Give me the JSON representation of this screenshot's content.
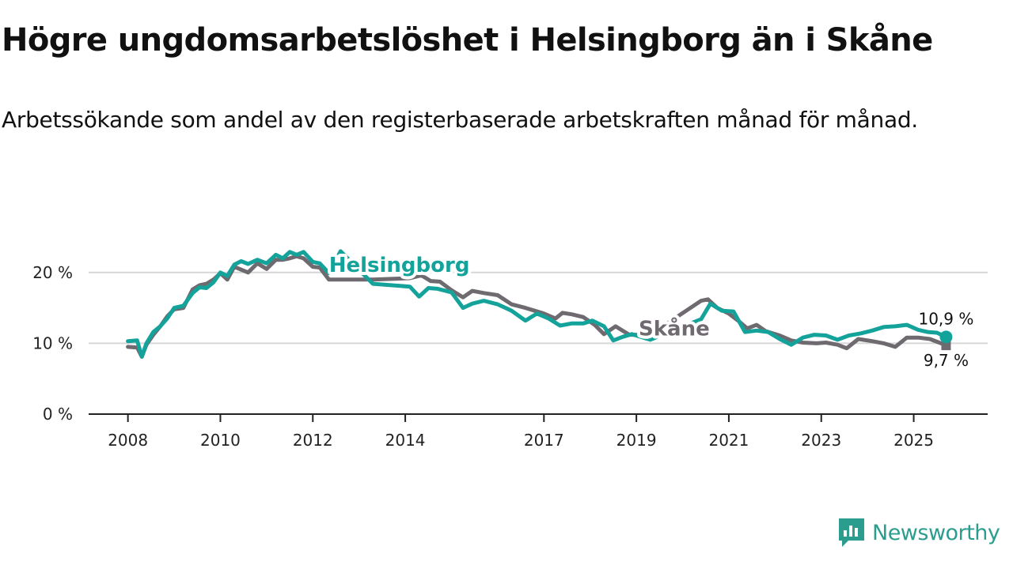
{
  "header": {
    "title": "Högre ungdomsarbetslöshet i Helsingborg än i Skåne",
    "subtitle": "Arbetssökande som andel av den registerbaserade arbetskraften månad för månad."
  },
  "brand": {
    "name": "Newsworthy",
    "icon": "newsworthy-logo-icon",
    "color": "#2a9d8f"
  },
  "chart_data": {
    "type": "line",
    "title": "Högre ungdomsarbetslöshet i Helsingborg än i Skåne",
    "subtitle": "Arbetssökande som andel av den registerbaserade arbetskraften månad för månad.",
    "xlabel": "",
    "ylabel": "",
    "x_ticks": [
      "2008",
      "2010",
      "2012",
      "2014",
      "2017",
      "2019",
      "2021",
      "2023",
      "2025"
    ],
    "x_tick_values": [
      2008.0,
      2010.0,
      2012.0,
      2014.0,
      2017.0,
      2019.0,
      2021.0,
      2023.0,
      2025.0
    ],
    "xlim": [
      2007.15,
      2026.6
    ],
    "y_ticks": [
      "0 %",
      "10 %",
      "20 %"
    ],
    "y_tick_values": [
      0,
      10,
      20
    ],
    "ylim": [
      0,
      25
    ],
    "grid": true,
    "series": [
      {
        "name": "Skåne",
        "color": "#6e6a70",
        "end_label": "9,7 %",
        "x": [
          2008.0,
          2008.2,
          2008.3,
          2008.4,
          2008.55,
          2008.7,
          2008.85,
          2009.0,
          2009.2,
          2009.4,
          2009.55,
          2009.7,
          2009.85,
          2010.0,
          2010.15,
          2010.3,
          2010.45,
          2010.6,
          2010.8,
          2011.0,
          2011.2,
          2011.35,
          2011.5,
          2011.65,
          2011.8,
          2012.0,
          2012.15,
          2012.35,
          2013.3,
          2014.1,
          2014.35,
          2014.55,
          2014.75,
          2015.0,
          2015.25,
          2015.45,
          2015.7,
          2016.0,
          2016.3,
          2016.6,
          2016.8,
          2017.0,
          2017.25,
          2017.4,
          2017.6,
          2017.85,
          2018.1,
          2018.3,
          2018.55,
          2018.75,
          2018.85,
          2019.3,
          2020.4,
          2020.55,
          2020.75,
          2021.0,
          2021.2,
          2021.4,
          2021.6,
          2021.8,
          2022.1,
          2022.35,
          2022.6,
          2022.9,
          2023.1,
          2023.35,
          2023.55,
          2023.8,
          2024.1,
          2024.35,
          2024.6,
          2024.85,
          2025.1,
          2025.35,
          2025.55,
          2025.7
        ],
        "values": [
          9.5,
          9.4,
          8.1,
          9.8,
          11.2,
          12.4,
          13.8,
          14.8,
          15.0,
          17.6,
          18.2,
          18.4,
          19.0,
          19.9,
          19.0,
          20.8,
          20.4,
          20.0,
          21.3,
          20.5,
          21.8,
          21.8,
          22.0,
          22.3,
          22.0,
          20.8,
          20.7,
          19.0,
          19.0,
          19.2,
          19.6,
          18.8,
          18.7,
          17.5,
          16.5,
          17.4,
          17.1,
          16.8,
          15.5,
          15.0,
          14.6,
          14.2,
          13.5,
          14.3,
          14.1,
          13.7,
          12.6,
          11.3,
          12.4,
          11.6,
          11.2,
          11.2,
          16.0,
          16.2,
          15.0,
          14.2,
          13.2,
          12.1,
          12.6,
          11.7,
          11.1,
          10.4,
          10.1,
          10.0,
          10.1,
          9.8,
          9.3,
          10.6,
          10.3,
          10.0,
          9.5,
          10.8,
          10.8,
          10.6,
          10.1,
          9.7
        ]
      },
      {
        "name": "Helsingborg",
        "color": "#14a39b",
        "end_label": "10,9 %",
        "x": [
          2008.0,
          2008.2,
          2008.3,
          2008.4,
          2008.55,
          2008.7,
          2008.85,
          2009.0,
          2009.2,
          2009.4,
          2009.55,
          2009.7,
          2009.85,
          2010.0,
          2010.15,
          2010.3,
          2010.45,
          2010.6,
          2010.8,
          2011.0,
          2011.2,
          2011.35,
          2011.5,
          2011.65,
          2011.8,
          2012.0,
          2012.15,
          2012.35,
          2012.6,
          2013.3,
          2014.1,
          2014.3,
          2014.5,
          2014.7,
          2015.0,
          2015.25,
          2015.45,
          2015.7,
          2016.0,
          2016.3,
          2016.6,
          2016.85,
          2017.1,
          2017.35,
          2017.6,
          2017.85,
          2018.05,
          2018.3,
          2018.5,
          2018.7,
          2018.9,
          2019.3,
          2020.4,
          2020.6,
          2020.85,
          2021.1,
          2021.35,
          2021.6,
          2021.85,
          2022.1,
          2022.35,
          2022.6,
          2022.85,
          2023.1,
          2023.35,
          2023.6,
          2023.85,
          2024.1,
          2024.35,
          2024.6,
          2024.85,
          2025.1,
          2025.3,
          2025.5,
          2025.7
        ],
        "values": [
          10.3,
          10.4,
          8.1,
          10.0,
          11.6,
          12.4,
          13.5,
          15.0,
          15.3,
          17.1,
          17.9,
          17.8,
          18.6,
          20.0,
          19.5,
          21.1,
          21.6,
          21.2,
          21.8,
          21.3,
          22.5,
          22.0,
          22.9,
          22.5,
          22.9,
          21.5,
          21.3,
          19.9,
          23.0,
          18.4,
          18.0,
          16.6,
          17.8,
          17.7,
          17.2,
          15.0,
          15.6,
          16.0,
          15.5,
          14.6,
          13.2,
          14.2,
          13.5,
          12.5,
          12.8,
          12.8,
          13.2,
          12.4,
          10.4,
          10.9,
          11.3,
          10.5,
          13.4,
          15.6,
          14.6,
          14.5,
          11.6,
          11.8,
          11.6,
          10.6,
          9.8,
          10.8,
          11.2,
          11.1,
          10.5,
          11.1,
          11.4,
          11.8,
          12.3,
          12.4,
          12.6,
          11.9,
          11.6,
          11.5,
          10.9
        ]
      }
    ]
  }
}
